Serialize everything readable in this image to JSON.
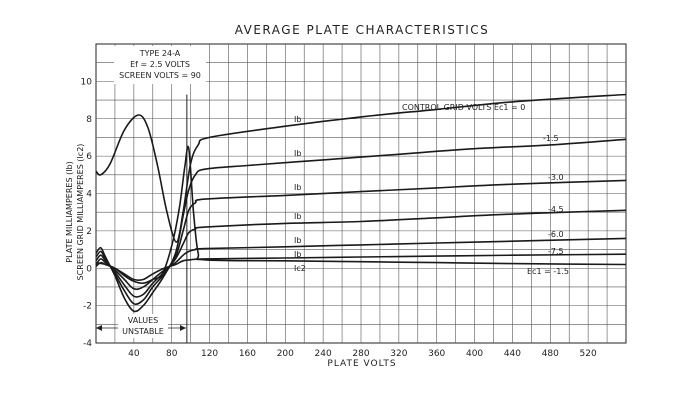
{
  "chart_data": {
    "type": "line",
    "title": "AVERAGE PLATE CHARACTERISTICS",
    "xlabel": "PLATE VOLTS",
    "ylabel": "PLATE MILLIAMPERES (Ib)",
    "ylabel2": "SCREEN GRID MILLIAMPERES (Ic2)",
    "xlim": [
      0,
      560
    ],
    "ylim": [
      -4,
      12
    ],
    "x_ticks": [
      "40",
      "80",
      "120",
      "160",
      "200",
      "240",
      "280",
      "320",
      "360",
      "400",
      "440",
      "480",
      "520"
    ],
    "y_ticks": [
      "-4",
      "-2",
      "0",
      "2",
      "4",
      "6",
      "8",
      "10"
    ],
    "grid": true,
    "info_box": [
      "TYPE 24-A",
      "Ef = 2.5 VOLTS",
      "SCREEN VOLTS = 90"
    ],
    "region_note": [
      "VALUES",
      "UNSTABLE"
    ],
    "curve_labels": {
      "ib": "Ib",
      "ic2": "Ic2",
      "ec1_top": "CONTROL GRID VOLTS Ec1 = 0",
      "ec1_bottom": "Ec1 = -1.5",
      "grid_volts": [
        "-1.5",
        "-3.0",
        "-4.5",
        "-6.0",
        "-7.5"
      ]
    },
    "series": [
      {
        "name": "Ec1 = 0",
        "points": [
          [
            0,
            5.2
          ],
          [
            5,
            5.0
          ],
          [
            15,
            5.6
          ],
          [
            30,
            7.4
          ],
          [
            45,
            8.2
          ],
          [
            55,
            7.5
          ],
          [
            65,
            5.5
          ],
          [
            75,
            3.0
          ],
          [
            85,
            1.4
          ],
          [
            92,
            3.0
          ],
          [
            100,
            5.6
          ],
          [
            108,
            6.6
          ],
          [
            120,
            7.0
          ],
          [
            200,
            7.6
          ],
          [
            280,
            8.1
          ],
          [
            360,
            8.5
          ],
          [
            440,
            8.9
          ],
          [
            560,
            9.3
          ]
        ]
      },
      {
        "name": "Ec1 = -1.5",
        "points": [
          [
            0,
            0.8
          ],
          [
            5,
            1.1
          ],
          [
            10,
            0.6
          ],
          [
            20,
            -0.4
          ],
          [
            30,
            -1.6
          ],
          [
            40,
            -2.3
          ],
          [
            50,
            -2.0
          ],
          [
            60,
            -1.3
          ],
          [
            72,
            -0.4
          ],
          [
            84,
            0.8
          ],
          [
            92,
            2.8
          ],
          [
            98,
            4.2
          ],
          [
            105,
            5.0
          ],
          [
            115,
            5.3
          ],
          [
            160,
            5.5
          ],
          [
            240,
            5.8
          ],
          [
            320,
            6.1
          ],
          [
            400,
            6.4
          ],
          [
            480,
            6.6
          ],
          [
            560,
            6.9
          ]
        ]
      },
      {
        "name": "Ec1 = -3.0",
        "points": [
          [
            0,
            0.6
          ],
          [
            5,
            0.9
          ],
          [
            10,
            0.5
          ],
          [
            20,
            -0.3
          ],
          [
            30,
            -1.2
          ],
          [
            40,
            -1.9
          ],
          [
            50,
            -1.7
          ],
          [
            60,
            -1.0
          ],
          [
            72,
            -0.3
          ],
          [
            84,
            0.6
          ],
          [
            92,
            2.0
          ],
          [
            98,
            3.1
          ],
          [
            105,
            3.5
          ],
          [
            115,
            3.7
          ],
          [
            200,
            3.9
          ],
          [
            280,
            4.1
          ],
          [
            360,
            4.3
          ],
          [
            440,
            4.5
          ],
          [
            560,
            4.7
          ]
        ]
      },
      {
        "name": "Ec1 = -4.5",
        "points": [
          [
            0,
            0.4
          ],
          [
            5,
            0.7
          ],
          [
            10,
            0.4
          ],
          [
            20,
            -0.2
          ],
          [
            30,
            -0.9
          ],
          [
            40,
            -1.5
          ],
          [
            50,
            -1.4
          ],
          [
            60,
            -0.8
          ],
          [
            72,
            -0.2
          ],
          [
            84,
            0.5
          ],
          [
            92,
            1.3
          ],
          [
            98,
            1.9
          ],
          [
            105,
            2.1
          ],
          [
            115,
            2.2
          ],
          [
            200,
            2.4
          ],
          [
            280,
            2.5
          ],
          [
            360,
            2.7
          ],
          [
            440,
            2.9
          ],
          [
            560,
            3.1
          ]
        ]
      },
      {
        "name": "Ec1 = -6.0",
        "points": [
          [
            0,
            0.2
          ],
          [
            5,
            0.5
          ],
          [
            10,
            0.3
          ],
          [
            20,
            -0.1
          ],
          [
            30,
            -0.6
          ],
          [
            40,
            -1.1
          ],
          [
            50,
            -1.0
          ],
          [
            60,
            -0.6
          ],
          [
            72,
            -0.1
          ],
          [
            84,
            0.3
          ],
          [
            92,
            0.7
          ],
          [
            98,
            0.9
          ],
          [
            105,
            1.0
          ],
          [
            115,
            1.05
          ],
          [
            200,
            1.15
          ],
          [
            280,
            1.25
          ],
          [
            360,
            1.35
          ],
          [
            440,
            1.45
          ],
          [
            560,
            1.6
          ]
        ]
      },
      {
        "name": "Ec1 = -7.5",
        "points": [
          [
            0,
            0.1
          ],
          [
            5,
            0.3
          ],
          [
            10,
            0.2
          ],
          [
            20,
            0.0
          ],
          [
            30,
            -0.3
          ],
          [
            40,
            -0.6
          ],
          [
            50,
            -0.6
          ],
          [
            60,
            -0.3
          ],
          [
            72,
            0.0
          ],
          [
            84,
            0.2
          ],
          [
            92,
            0.4
          ],
          [
            100,
            0.45
          ],
          [
            115,
            0.5
          ],
          [
            200,
            0.55
          ],
          [
            280,
            0.6
          ],
          [
            360,
            0.65
          ],
          [
            440,
            0.7
          ],
          [
            560,
            0.75
          ]
        ]
      },
      {
        "name": "Ic2, Ec1 = -1.5",
        "points": [
          [
            0,
            0.3
          ],
          [
            10,
            0.2
          ],
          [
            20,
            0.0
          ],
          [
            30,
            -0.4
          ],
          [
            40,
            -0.7
          ],
          [
            50,
            -0.8
          ],
          [
            60,
            -0.6
          ],
          [
            70,
            -0.3
          ],
          [
            80,
            1.2
          ],
          [
            88,
            3.2
          ],
          [
            94,
            5.5
          ],
          [
            98,
            6.4
          ],
          [
            103,
            3.0
          ],
          [
            108,
            0.8
          ],
          [
            115,
            0.45
          ],
          [
            200,
            0.4
          ],
          [
            280,
            0.35
          ],
          [
            360,
            0.3
          ],
          [
            440,
            0.25
          ],
          [
            560,
            0.2
          ]
        ]
      }
    ]
  }
}
